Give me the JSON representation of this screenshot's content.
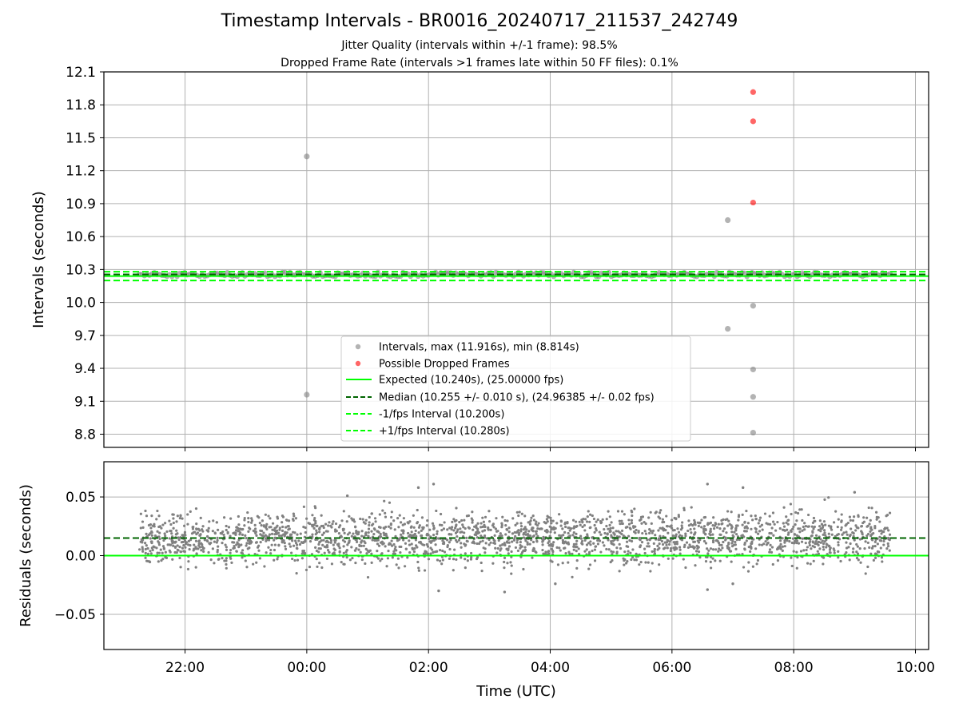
{
  "title": "Timestamp Intervals - BR0016_20240717_211537_242749",
  "subtitle_1": "Jitter Quality (intervals within +/-1 frame): 98.5%",
  "subtitle_2": "Dropped Frame Rate (intervals >1 frames late within 50 FF files): 0.1%",
  "colors": {
    "intervals": "#808080",
    "dropped": "#ff0000",
    "expected": "#00ff00",
    "median": "#006400",
    "grid": "#b0b0b0"
  },
  "chart_data": [
    {
      "type": "scatter",
      "panel": "top",
      "ylabel": "Intervals (seconds)",
      "ylim": [
        8.68,
        12.1
      ],
      "yticks": [
        "12.1",
        "11.8",
        "11.5",
        "11.2",
        "10.9",
        "10.6",
        "10.3",
        "10.0",
        "9.7",
        "9.4",
        "9.1",
        "8.8"
      ],
      "ytick_values": [
        12.1,
        11.8,
        11.5,
        11.2,
        10.9,
        10.6,
        10.3,
        10.0,
        9.7,
        9.4,
        9.1,
        8.8
      ],
      "xlim": [
        "20:40",
        "10:13"
      ],
      "xticks": [
        "22:00",
        "00:00",
        "02:00",
        "04:00",
        "06:00",
        "08:00",
        "10:00"
      ],
      "grid": true,
      "legend_position": "lower center",
      "hlines": {
        "expected": 10.24,
        "median": 10.255,
        "minus_1_fps": 10.2,
        "plus_1_fps": 10.28
      },
      "series": [
        {
          "name": "Intervals, max (11.916s), min (8.814s)",
          "band_center": 10.255,
          "band_spread": 0.02,
          "time_range": [
            "21:15",
            "09:35"
          ],
          "outliers": [
            {
              "x": "00:00",
              "y": 11.33
            },
            {
              "x": "00:00",
              "y": 9.16
            },
            {
              "x": "06:55",
              "y": 10.75
            },
            {
              "x": "06:55",
              "y": 9.76
            },
            {
              "x": "07:20",
              "y": 9.97
            },
            {
              "x": "07:20",
              "y": 9.39
            },
            {
              "x": "07:20",
              "y": 9.14
            },
            {
              "x": "07:20",
              "y": 8.814
            }
          ]
        },
        {
          "name": "Possible Dropped Frames",
          "points": [
            {
              "x": "07:20",
              "y": 11.916
            },
            {
              "x": "07:20",
              "y": 11.65
            },
            {
              "x": "07:20",
              "y": 10.91
            }
          ]
        }
      ],
      "legend": [
        "Intervals, max (11.916s), min (8.814s)",
        "Possible Dropped Frames",
        "Expected (10.240s), (25.00000 fps)",
        "Median (10.255 +/- 0.010 s), (24.96385 +/- 0.02 fps)",
        "-1/fps Interval (10.200s)",
        "+1/fps Interval (10.280s)"
      ]
    },
    {
      "type": "scatter",
      "panel": "bottom",
      "xlabel": "Time (UTC)",
      "ylabel": "Residuals (seconds)",
      "ylim": [
        -0.08,
        0.08
      ],
      "yticks": [
        "0.05",
        "0.00",
        "−0.05"
      ],
      "ytick_values": [
        0.05,
        0.0,
        -0.05
      ],
      "xlim": [
        "20:40",
        "10:13"
      ],
      "xticks": [
        "22:00",
        "00:00",
        "02:00",
        "04:00",
        "06:00",
        "08:00",
        "10:00"
      ],
      "grid": true,
      "hlines": {
        "zero": 0.0,
        "median": 0.015
      },
      "series": [
        {
          "name": "Residuals",
          "center": 0.015,
          "spread": 0.011,
          "time_range": [
            "21:15",
            "09:35"
          ],
          "outliers": [
            {
              "x": "02:05",
              "y": 0.061
            },
            {
              "x": "03:15",
              "y": -0.031
            },
            {
              "x": "01:50",
              "y": 0.058
            },
            {
              "x": "06:35",
              "y": 0.061
            },
            {
              "x": "06:35",
              "y": -0.029
            },
            {
              "x": "07:10",
              "y": 0.058
            },
            {
              "x": "07:00",
              "y": -0.024
            },
            {
              "x": "09:00",
              "y": 0.054
            },
            {
              "x": "02:10",
              "y": -0.03
            },
            {
              "x": "04:05",
              "y": -0.024
            },
            {
              "x": "00:40",
              "y": 0.051
            }
          ]
        }
      ]
    }
  ]
}
